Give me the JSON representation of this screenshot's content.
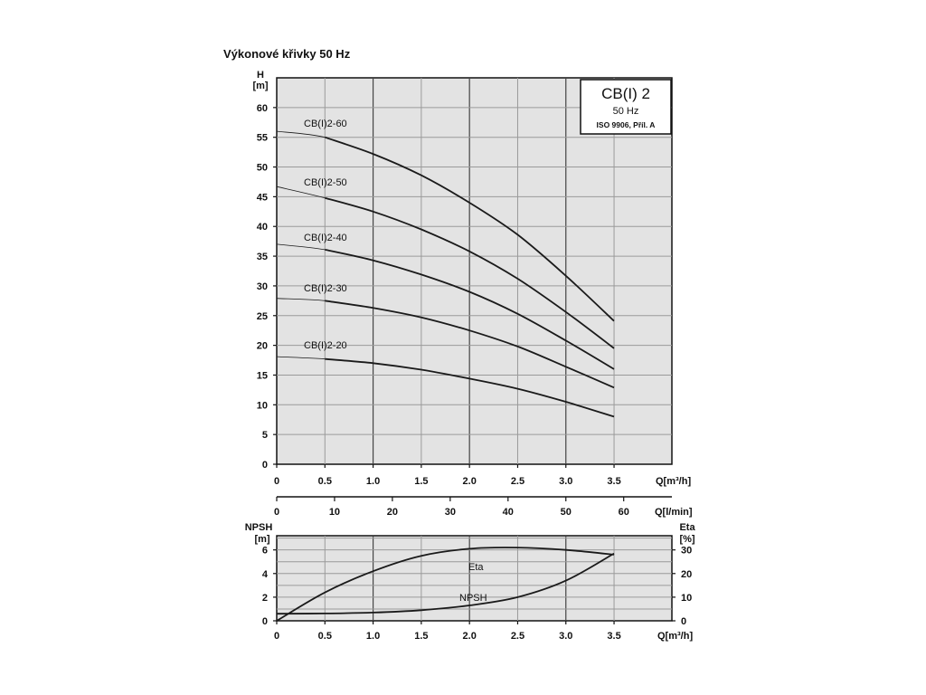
{
  "title": "Výkonové křivky 50 Hz",
  "badge": {
    "line1": "CB(I) 2",
    "line2": "50 Hz",
    "line3": "ISO 9906, Příl. A"
  },
  "colors": {
    "plot_bg": "#e3e3e3",
    "curve": "#1a1a1a"
  },
  "chart_data": [
    {
      "type": "line",
      "title": "",
      "ylabel_lines": [
        "H",
        "[m]"
      ],
      "xlabel": "Q[m³/h]",
      "xlim": [
        0,
        4.1
      ],
      "ylim": [
        0,
        65
      ],
      "x_ticks": [
        0,
        0.5,
        1.0,
        1.5,
        2.0,
        2.5,
        3.0,
        3.5
      ],
      "x_tick_labels": [
        "0",
        "0.5",
        "1.0",
        "1.5",
        "2.0",
        "2.5",
        "3.0",
        "3.5"
      ],
      "y_ticks": [
        0,
        5,
        10,
        15,
        20,
        25,
        30,
        35,
        40,
        45,
        50,
        55,
        60
      ],
      "y_tick_labels": [
        "0",
        "5",
        "10",
        "15",
        "20",
        "25",
        "30",
        "35",
        "40",
        "45",
        "50",
        "55",
        "60"
      ],
      "secondary_x_axis": {
        "label": "Q[l/min]",
        "ticks": [
          0,
          10,
          20,
          30,
          40,
          50,
          60
        ],
        "tick_labels": [
          "0",
          "10",
          "20",
          "30",
          "40",
          "50",
          "60"
        ]
      },
      "x": [
        0,
        0.5,
        1.0,
        1.5,
        2.0,
        2.5,
        3.0,
        3.5
      ],
      "series": [
        {
          "name": "CB(I)2-60",
          "values": [
            56.0,
            55.0,
            52.2,
            48.6,
            44.0,
            38.6,
            31.7,
            24.1
          ]
        },
        {
          "name": "CB(I)2-50",
          "values": [
            46.7,
            44.8,
            42.5,
            39.5,
            35.8,
            31.2,
            25.6,
            19.5
          ]
        },
        {
          "name": "CB(I)2-40",
          "values": [
            37.0,
            36.1,
            34.3,
            31.9,
            29.0,
            25.3,
            20.8,
            16.0
          ]
        },
        {
          "name": "CB(I)2-30",
          "values": [
            27.9,
            27.5,
            26.3,
            24.7,
            22.5,
            19.8,
            16.4,
            12.9
          ]
        },
        {
          "name": "CB(I)2-20",
          "values": [
            18.1,
            17.7,
            17.0,
            15.9,
            14.4,
            12.7,
            10.5,
            8.0
          ]
        }
      ],
      "grid": true
    },
    {
      "type": "line",
      "title": "",
      "ylabel_left_lines": [
        "NPSH",
        "[m]"
      ],
      "ylabel_right_lines": [
        "Eta",
        "[%]"
      ],
      "xlabel": "Q[m³/h]",
      "xlim": [
        0,
        4.1
      ],
      "ylim_left": [
        0,
        7.2
      ],
      "ylim_right": [
        0,
        36
      ],
      "x_ticks": [
        0,
        0.5,
        1.0,
        1.5,
        2.0,
        2.5,
        3.0,
        3.5
      ],
      "x_tick_labels": [
        "0",
        "0.5",
        "1.0",
        "1.5",
        "2.0",
        "2.5",
        "3.0",
        "3.5"
      ],
      "y_left_ticks": [
        0,
        2,
        4,
        6
      ],
      "y_left_tick_labels": [
        "0",
        "2",
        "4",
        "6"
      ],
      "y_right_ticks": [
        0,
        10,
        20,
        30
      ],
      "y_right_tick_labels": [
        "0",
        "10",
        "20",
        "30"
      ],
      "x": [
        0,
        0.5,
        1.0,
        1.5,
        2.0,
        2.5,
        3.0,
        3.5
      ],
      "series": [
        {
          "name": "Eta",
          "axis": "right",
          "values": [
            0,
            12,
            21,
            27.5,
            30.5,
            31,
            30,
            28
          ]
        },
        {
          "name": "NPSH",
          "axis": "left",
          "values": [
            0.6,
            0.62,
            0.7,
            0.9,
            1.3,
            2.0,
            3.4,
            5.7
          ]
        }
      ],
      "grid": true
    }
  ]
}
